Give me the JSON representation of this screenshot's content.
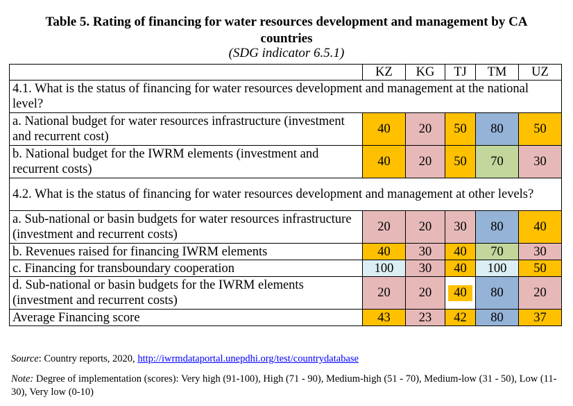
{
  "title_line1": "Table 5. Rating of financing  for water resources development and management by CA",
  "title_line2": "countries",
  "subtitle": "(SDG indicator 6.5.1)",
  "columns": [
    "KZ",
    "KG",
    "TJ",
    "TM",
    "UZ"
  ],
  "section1": "4.1. What is the status of financing for water resources development and management at the national level?",
  "section2": "4.2. What is the status of financing for water resources development and management at other levels?",
  "rows": {
    "a1": {
      "label": "a. National budget for water resources infrastructure (investment and recurrent cost)",
      "values": [
        "40",
        "20",
        "50",
        "80",
        "50"
      ]
    },
    "b1": {
      "label": "b. National budget for the IWRM elements (investment and recurrent costs)",
      "values": [
        "40",
        "20",
        "50",
        "70",
        "30"
      ]
    },
    "a2": {
      "label": "a. Sub-national or basin budgets for water resources infrastructure (investment and recurrent costs)",
      "values": [
        "20",
        "20",
        "30",
        "80",
        "40"
      ]
    },
    "b2": {
      "label": "b. Revenues raised for financing IWRM elements",
      "values": [
        "40",
        "30",
        "40",
        "70",
        "30"
      ]
    },
    "c2": {
      "label": "c. Financing for transboundary cooperation",
      "values": [
        "100",
        "30",
        "40",
        "100",
        "50"
      ]
    },
    "d2": {
      "label": "d. Sub-national or basin budgets for the IWRM elements (investment and recurrent costs)",
      "values": [
        "20",
        "20",
        "40",
        "80",
        "20"
      ]
    },
    "avg": {
      "label": "Average Financing score",
      "values": [
        "43",
        "23",
        "42",
        "80",
        "37"
      ]
    }
  },
  "colors": {
    "orange": "#ffc000",
    "pink": "#e6b9b8",
    "blue": "#95b3d7",
    "green": "#c3d69b",
    "light": "#dbeef3"
  },
  "source": {
    "label": "Source",
    "text": ": Country reports, 2020, ",
    "link": "http://iwrmdataportal.unepdhi.org/test/countrydatabase"
  },
  "note": {
    "label": "Note:",
    "text": " Degree of implementation (scores): Very high (91-100), High (71 - 90), Medium-high (51 - 70), Medium-low (31 - 50), Low (11-30), Very low (0-10)"
  }
}
